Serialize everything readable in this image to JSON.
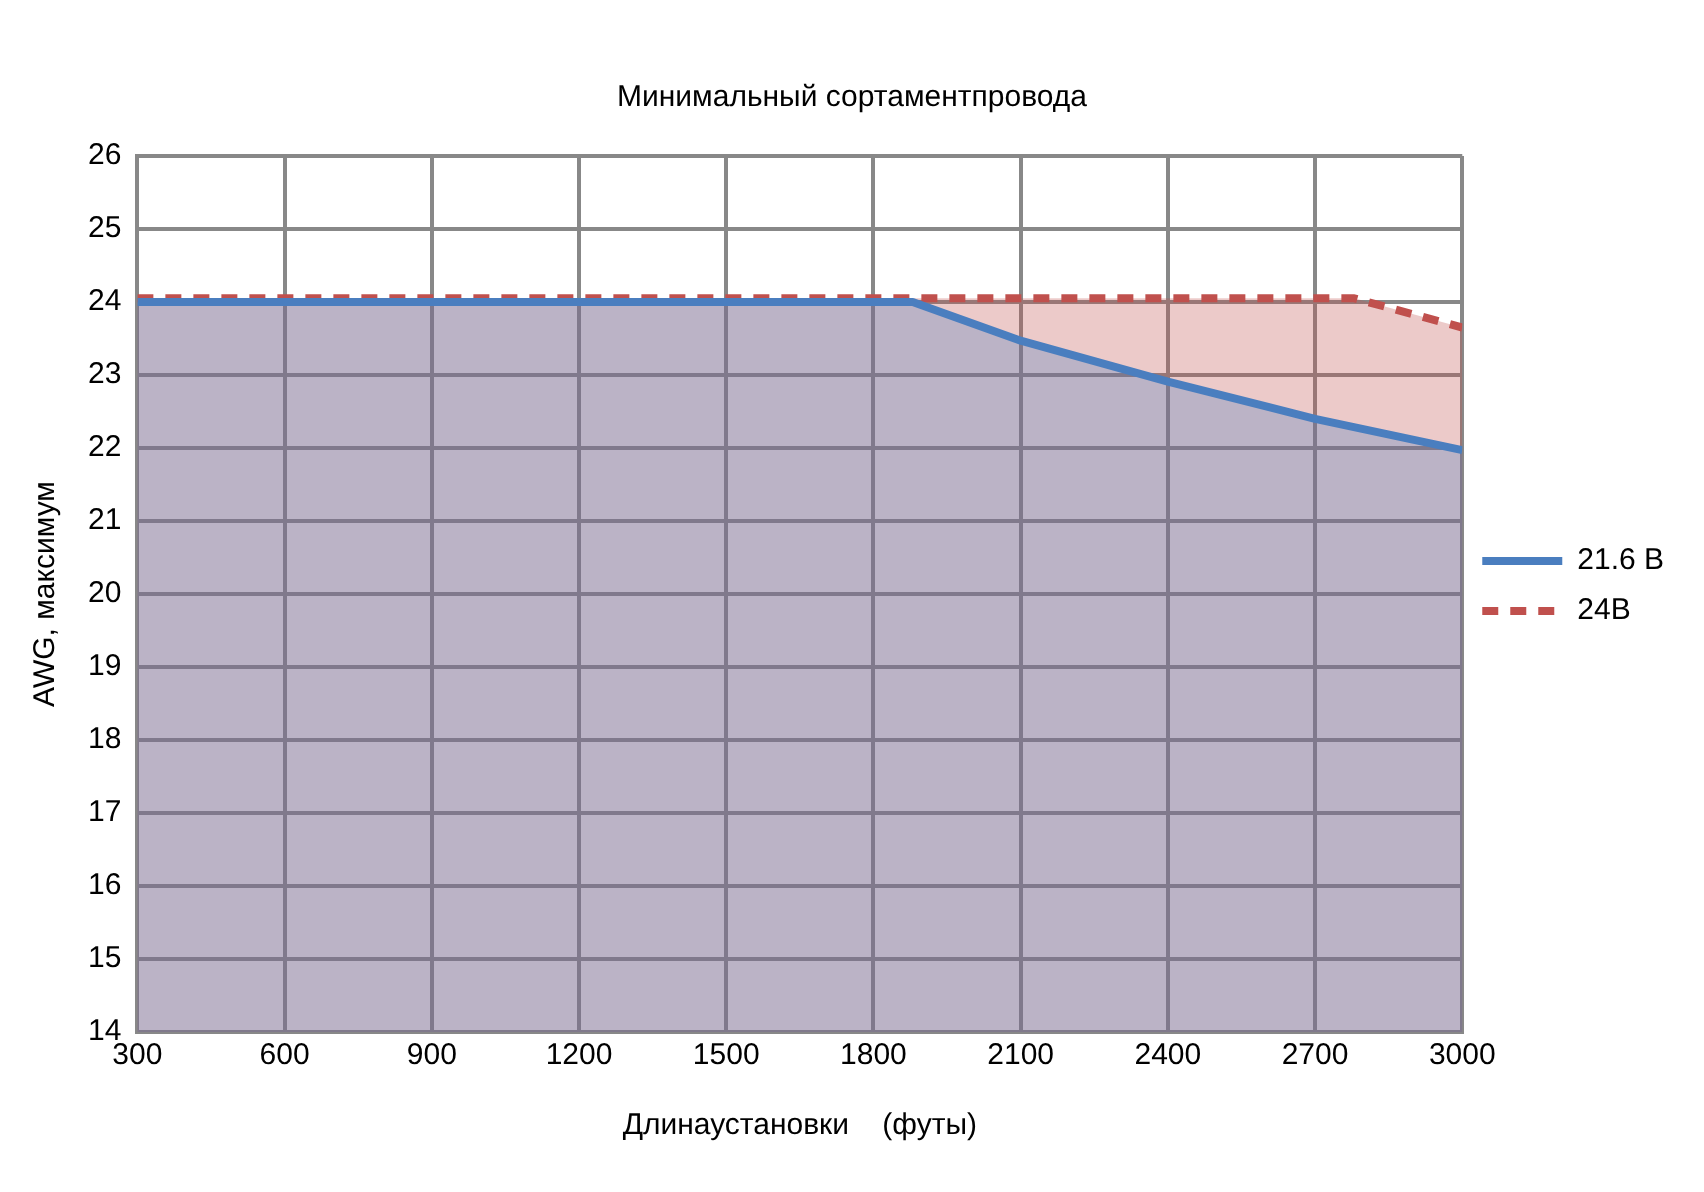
{
  "chart_data": {
    "type": "area",
    "title": "Минимальный сортаментпровода",
    "xlabel": "Длинаустановки    (футы)",
    "ylabel": "AWG, максимум",
    "xlim": [
      300,
      3000
    ],
    "xticks": [
      300,
      600,
      900,
      1200,
      1500,
      1800,
      2100,
      2400,
      2700,
      3000
    ],
    "ylim": [
      14,
      26
    ],
    "yticks": [
      14,
      15,
      16,
      17,
      18,
      19,
      20,
      21,
      22,
      23,
      24,
      25,
      26
    ],
    "grid": true,
    "legend": "right",
    "marker": "none",
    "series": [
      {
        "name": "21.6 В",
        "color": "#4a7ebf",
        "line_style": "solid",
        "x": [
          300,
          1880,
          2100,
          2400,
          2700,
          3000
        ],
        "values": [
          24,
          24,
          23.47,
          22.91,
          22.4,
          21.97
        ]
      },
      {
        "name": "24В",
        "color": "#c0504d",
        "line_style": "dashed",
        "x": [
          300,
          2780,
          3000
        ],
        "values": [
          24.05,
          24.05,
          23.65
        ]
      }
    ]
  }
}
